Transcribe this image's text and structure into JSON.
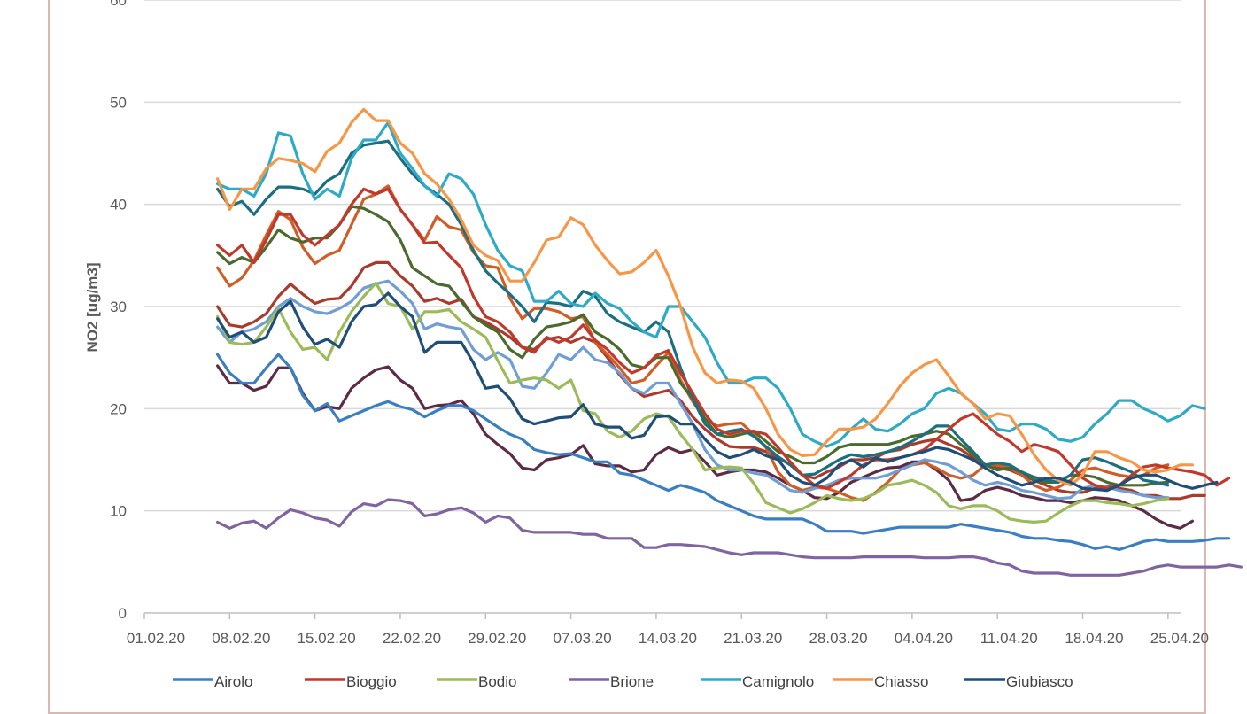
{
  "chart_data": {
    "type": "line",
    "ylabel": "NO2 [ug/m3]",
    "xlabel": "",
    "title": "",
    "ylim": [
      0,
      60
    ],
    "yticks": [
      0,
      10,
      20,
      30,
      40,
      50,
      60
    ],
    "x_tick_labels": [
      "01.02.20",
      "08.02.20",
      "15.02.20",
      "22.02.20",
      "29.02.20",
      "07.03.20",
      "14.03.20",
      "21.03.20",
      "28.03.20",
      "04.04.20",
      "11.04.20",
      "18.04.20",
      "25.04.20"
    ],
    "x_start": "2020-02-01",
    "x_end": "2020-04-26",
    "grid": "horizontal",
    "legend_position": "bottom",
    "series": [
      {
        "name": "Airolo",
        "color": "#3a7fc1",
        "start": "2020-02-07",
        "values": [
          25.3,
          23.5,
          22.5,
          22.5,
          24,
          25.3,
          24,
          21.3,
          19.8,
          20.5,
          18.8,
          19.3,
          19.8,
          20.3,
          20.7,
          20.2,
          19.9,
          19.2,
          19.8,
          20.3,
          20.3,
          19.8,
          19,
          18.2,
          17.5,
          17,
          16,
          15.7,
          15.5,
          15.6,
          15.2,
          14.8,
          14.8,
          13.7,
          13.5,
          13,
          12.5,
          12,
          12.5,
          12.2,
          11.8,
          11,
          10.5,
          10,
          9.5,
          9.2,
          9.2,
          9.2,
          9.2,
          8.7,
          8,
          8,
          8,
          7.8,
          8,
          8.2,
          8.4,
          8.4,
          8.4,
          8.4,
          8.4,
          8.7,
          8.5,
          8.3,
          8.1,
          7.9,
          7.5,
          7.3,
          7.3,
          7.1,
          7,
          6.7,
          6.3,
          6.5,
          6.2,
          6.6,
          7,
          7.2,
          7,
          7,
          7,
          7.1,
          7.3,
          7.3
        ]
      },
      {
        "name": "Bioggio",
        "color": "#c0392b",
        "start": "2020-02-07",
        "values": [
          36,
          35,
          36,
          34.3,
          36.5,
          39,
          39,
          37,
          36,
          37,
          38,
          40,
          41.5,
          41,
          41.5,
          39.5,
          38,
          36.2,
          36.3,
          35,
          33.8,
          31,
          29,
          28.5,
          27.5,
          26,
          25.5,
          27,
          26.5,
          27,
          28.2,
          26.7,
          25.8,
          24.5,
          23.5,
          24,
          25.2,
          25.7,
          23.5,
          21.5,
          19.5,
          18,
          17.5,
          17.8,
          17.8,
          17.5,
          16.2,
          14.8,
          13.5,
          12.5,
          12.2,
          12.8,
          13.5,
          14.5,
          15,
          15,
          15.2,
          15.5,
          16,
          17,
          18,
          19,
          19.5,
          18.5,
          17.5,
          16.8,
          15.8,
          16.5,
          16.2,
          15.8,
          14.5,
          13.2,
          12.5,
          12.2,
          12.5,
          13.5,
          14.3,
          14.5,
          14.2,
          14,
          13.8,
          13.5,
          12.5,
          13.2
        ]
      },
      {
        "name": "Bodio",
        "color": "#9bbb59",
        "start": "2020-02-07",
        "values": [
          29,
          26.5,
          26.3,
          26.5,
          28,
          29.8,
          27.5,
          25.8,
          26,
          24.8,
          27.5,
          29.5,
          31,
          32.3,
          30.3,
          30,
          27.8,
          29.5,
          29.5,
          29.7,
          28.5,
          27.8,
          27,
          24.7,
          22.5,
          22.8,
          23,
          22.8,
          22,
          22.8,
          19.8,
          19.5,
          17.8,
          17.2,
          17.8,
          19,
          19.5,
          19.2,
          17.5,
          16,
          14,
          14.2,
          14.3,
          14.2,
          12.7,
          10.8,
          10.3,
          9.8,
          10.2,
          10.8,
          11.5,
          11.2,
          11,
          11.2,
          11.7,
          12.5,
          12.7,
          13,
          12.5,
          11.8,
          10.5,
          10.2,
          10.5,
          10.5,
          10,
          9.2,
          9,
          8.9,
          9,
          9.8,
          10.5,
          11,
          11,
          10.8,
          10.7,
          10.5,
          10.7,
          11,
          11.2
        ]
      },
      {
        "name": "Brione",
        "color": "#8064a2",
        "start": "2020-02-07",
        "values": [
          8.9,
          8.3,
          8.8,
          9,
          8.3,
          9.3,
          10.1,
          9.8,
          9.3,
          9.1,
          8.5,
          9.9,
          10.7,
          10.5,
          11.1,
          11,
          10.7,
          9.5,
          9.7,
          10.1,
          10.3,
          9.8,
          8.9,
          9.5,
          9.3,
          8.1,
          7.9,
          7.9,
          7.9,
          7.9,
          7.7,
          7.7,
          7.3,
          7.3,
          7.3,
          6.4,
          6.4,
          6.7,
          6.7,
          6.6,
          6.5,
          6.2,
          5.9,
          5.7,
          5.9,
          5.9,
          5.9,
          5.7,
          5.5,
          5.4,
          5.4,
          5.4,
          5.4,
          5.5,
          5.5,
          5.5,
          5.5,
          5.5,
          5.4,
          5.4,
          5.4,
          5.5,
          5.5,
          5.3,
          4.9,
          4.7,
          4.1,
          3.9,
          3.9,
          3.9,
          3.7,
          3.7,
          3.7,
          3.7,
          3.7,
          3.9,
          4.1,
          4.5,
          4.7,
          4.5,
          4.5,
          4.5,
          4.5,
          4.7,
          4.5
        ]
      },
      {
        "name": "Camignolo",
        "color": "#2eaac6",
        "start": "2020-02-07",
        "values": [
          42,
          41.5,
          41.5,
          40.8,
          43,
          47,
          46.7,
          43,
          40.5,
          41.5,
          40.8,
          44.5,
          46.3,
          46.3,
          48,
          45,
          43.5,
          41.8,
          40.8,
          43,
          42.5,
          41,
          38,
          35.5,
          34,
          33.5,
          30.5,
          30.5,
          31.5,
          30.3,
          30,
          31.3,
          30.3,
          29.8,
          28.5,
          27.5,
          27,
          30,
          30,
          28.5,
          27,
          24.5,
          22.5,
          22.5,
          23,
          23,
          22,
          20,
          17.5,
          16.8,
          16.3,
          16.8,
          18,
          19,
          18,
          17.8,
          18.5,
          19.5,
          20,
          21.5,
          22,
          21.5,
          20.5,
          19.5,
          18,
          17.8,
          18.5,
          18.5,
          18,
          17,
          16.8,
          17.2,
          18.5,
          19.5,
          20.8,
          20.8,
          20,
          19.5,
          18.8,
          19.3,
          20.3,
          20
        ]
      },
      {
        "name": "Chiasso",
        "color": "#f79646",
        "start": "2020-02-07",
        "values": [
          42.5,
          39.5,
          41.5,
          41.5,
          43.5,
          44.5,
          44.3,
          44,
          43.2,
          45.2,
          46,
          48,
          49.3,
          48.2,
          48.2,
          46,
          45,
          43,
          42,
          40.5,
          38.5,
          36,
          35,
          34.5,
          32.5,
          32.5,
          34.3,
          36.5,
          36.8,
          38.7,
          38,
          36,
          34.5,
          33.2,
          33.4,
          34.3,
          35.5,
          33,
          30,
          26,
          23.5,
          22.5,
          22.8,
          22.7,
          22,
          20,
          17.5,
          16,
          15.4,
          15.5,
          16.8,
          18,
          18,
          18.2,
          19,
          20.5,
          22.2,
          23.5,
          24.3,
          24.8,
          23.2,
          21.5,
          20.5,
          19,
          19.5,
          19.3,
          17.5,
          15.5,
          14,
          13,
          12.5,
          13.5,
          15.8,
          15.8,
          15.2,
          14.8,
          14,
          13.8,
          14,
          14.5,
          14.5
        ]
      },
      {
        "name": "Giubiasco",
        "color": "#1f4e79",
        "start": "2020-02-07",
        "values": [
          28.8,
          27,
          27.5,
          26.5,
          27,
          29.5,
          30.5,
          28,
          26.3,
          26.8,
          26,
          28.5,
          30,
          30.2,
          31.3,
          30,
          29,
          25.5,
          26.5,
          26.5,
          26.5,
          24.5,
          22,
          22.2,
          21,
          19,
          18.5,
          18.8,
          19.1,
          19.2,
          20.4,
          18.5,
          18.2,
          18.2,
          17.1,
          17.4,
          19.2,
          19.3,
          18.5,
          18.5,
          17,
          15.8,
          15.2,
          15.5,
          16,
          15.4,
          15,
          13.5,
          12.8,
          12.5,
          13.2,
          14.5,
          15,
          14.3,
          15.2,
          14.8,
          15.2,
          15.5,
          15.8,
          16.2,
          16,
          15.5,
          15,
          14.2,
          13.5,
          13,
          12.5,
          12.8,
          13.2,
          13.2,
          12.8,
          12.2,
          12.1,
          12,
          12.5,
          13.2,
          13.5,
          13.5,
          13,
          12.5,
          12.2,
          12.5,
          12.8
        ]
      },
      {
        "name": "",
        "color": "#5e2b45",
        "start": "2020-02-07",
        "values": [
          24.2,
          22.5,
          22.5,
          21.8,
          22.2,
          24,
          24,
          21.5,
          19.8,
          20.2,
          20,
          22,
          23,
          23.8,
          24.1,
          22.8,
          22,
          20,
          20.3,
          20.4,
          20.8,
          19.5,
          17.5,
          16.5,
          15.6,
          14.2,
          14,
          15,
          15.2,
          15.5,
          16.4,
          14.6,
          14.4,
          14.4,
          13.8,
          14,
          15.5,
          16.2,
          15.7,
          16,
          14.8,
          13.5,
          13.8,
          14,
          14,
          13.8,
          13.2,
          12.5,
          12,
          11.3,
          11.2,
          11.8,
          12.8,
          13.3,
          13.8,
          14.2,
          14.3,
          14.8,
          14.8,
          14,
          13,
          11,
          11.2,
          12,
          12.3,
          12,
          11.5,
          11.3,
          11,
          11,
          10.8,
          11,
          11.3,
          11.2,
          11,
          10.5,
          10,
          9.2,
          8.6,
          8.3,
          9.0
        ]
      },
      {
        "name": "",
        "color": "#aa3a2c",
        "start": "2020-02-07",
        "values": [
          30,
          28.2,
          28,
          28.5,
          29.3,
          31,
          32.2,
          31.2,
          30.3,
          30.7,
          30.8,
          32,
          33.8,
          34.3,
          34.3,
          33,
          32,
          30.5,
          30.8,
          30.3,
          30.7,
          29,
          28.5,
          27.8,
          27,
          26,
          25.8,
          26.8,
          27,
          26.5,
          27,
          26.5,
          25,
          23.3,
          22,
          21.2,
          21.5,
          21.8,
          20.8,
          19.2,
          18,
          17,
          16.3,
          16.2,
          16.2,
          15.8,
          15.2,
          14.5,
          13.5,
          13.2,
          13.8,
          14.3,
          15,
          15,
          15.2,
          15.8,
          16,
          16.5,
          16.8,
          17,
          16.5,
          16,
          15.2,
          14.5,
          14.2,
          14,
          13.5,
          13,
          12.5,
          12,
          11.8,
          11.8,
          12.2,
          12.4,
          12.2,
          12,
          11.5,
          11.5,
          11.2,
          11.2,
          11.5,
          11.5
        ]
      },
      {
        "name": "",
        "color": "#d05d25",
        "start": "2020-02-07",
        "values": [
          33.8,
          32,
          32.8,
          34.5,
          37,
          39.3,
          38.5,
          35.8,
          34.2,
          35,
          35.5,
          38,
          40.5,
          41,
          41.8,
          39.5,
          38,
          36.5,
          38.8,
          37.8,
          37.5,
          35.3,
          34,
          33.8,
          30.8,
          28.8,
          29.8,
          29.8,
          29.5,
          28.8,
          29,
          26.5,
          25.3,
          24,
          22.5,
          22.8,
          24.2,
          25.5,
          22.8,
          20.7,
          19,
          18.3,
          18.5,
          18.6,
          17.5,
          16.2,
          13.8,
          12.5,
          12,
          12.3,
          12.2,
          11.8,
          11.3,
          11,
          11.8,
          12.8,
          14,
          14.5,
          14.7,
          14.2,
          13.5,
          13.2,
          13.5,
          14.5,
          14.5,
          14.2,
          13.5,
          12.5,
          12,
          12.3,
          13,
          14,
          14.2,
          13.8,
          13.5,
          13.3,
          13.5,
          14.2,
          14.5
        ]
      },
      {
        "name": "",
        "color": "#4b6b2e",
        "start": "2020-02-07",
        "values": [
          35.3,
          34.2,
          34.8,
          34.3,
          35.8,
          37.5,
          36.7,
          36.3,
          36.7,
          36.7,
          38,
          39.8,
          39.6,
          39,
          38.3,
          36.5,
          33.8,
          33,
          32.2,
          32,
          30.5,
          29,
          28.2,
          27.5,
          25.8,
          25,
          26.8,
          28,
          28.2,
          28.5,
          29.2,
          27.5,
          26.8,
          25.8,
          24.3,
          24,
          25,
          25,
          22.5,
          21,
          19,
          17.5,
          17.2,
          17.5,
          17.8,
          16.8,
          15.8,
          15.3,
          14.7,
          14.7,
          15.3,
          16.2,
          16.5,
          16.5,
          16.5,
          16.5,
          16.8,
          17.3,
          17.5,
          17.8,
          17.5,
          16.5,
          15.5,
          14.5,
          14,
          14.2,
          13.8,
          13,
          12.8,
          12.8,
          13.5,
          13.5,
          13.3,
          12.8,
          12.5,
          12.5,
          12.5,
          12.7,
          12.8
        ]
      },
      {
        "name": "",
        "color": "#1b6f7e",
        "start": "2020-02-07",
        "values": [
          41.5,
          39.8,
          40.3,
          39,
          40.5,
          41.7,
          41.7,
          41.5,
          41,
          42.3,
          43,
          45,
          45.8,
          46,
          46.2,
          44.5,
          43,
          41.8,
          41,
          40,
          38,
          35.5,
          33.5,
          32.3,
          31.2,
          30,
          28.5,
          30.4,
          30.3,
          30,
          31.5,
          31,
          29.3,
          28.5,
          28,
          27.5,
          28.5,
          27.5,
          24,
          21,
          18.5,
          17.5,
          17.8,
          18,
          17.3,
          16.3,
          15.3,
          14.5,
          13.5,
          13.6,
          14.3,
          15,
          15.5,
          15.3,
          15.5,
          15.8,
          16.2,
          16.8,
          17.5,
          18.3,
          18.3,
          17,
          15.8,
          14.5,
          14.7,
          14.5,
          13.8,
          13.3,
          13,
          12.8,
          13.5,
          15,
          15.2,
          14.8,
          14.3,
          13.8,
          13,
          12.8,
          12.5
        ]
      },
      {
        "name": "",
        "color": "#6f9ed6",
        "start": "2020-02-07",
        "values": [
          28,
          26.5,
          27.5,
          27.8,
          28.5,
          30,
          30.8,
          30,
          29.5,
          29.3,
          29.8,
          30.5,
          31.8,
          32.2,
          32.5,
          31.5,
          30.3,
          27.8,
          28.3,
          28,
          27.8,
          25.8,
          24.8,
          25.5,
          24.8,
          22.2,
          22,
          23.5,
          25.3,
          24.8,
          26,
          24.8,
          24.5,
          23.5,
          22,
          21.5,
          22.5,
          22.5,
          20.5,
          18.5,
          16,
          14.5,
          14,
          14,
          13.7,
          13.5,
          12.8,
          12,
          11.8,
          12.2,
          12.5,
          13,
          13.2,
          13.2,
          13.2,
          13.5,
          14,
          14.5,
          15,
          14.8,
          14.5,
          13.8,
          13,
          12.5,
          12.8,
          12.5,
          12,
          11.8,
          11.5,
          11.2,
          11.3,
          12.2,
          12.5,
          12.3,
          12,
          11.8,
          11.5,
          11.3,
          11.3
        ]
      }
    ]
  }
}
